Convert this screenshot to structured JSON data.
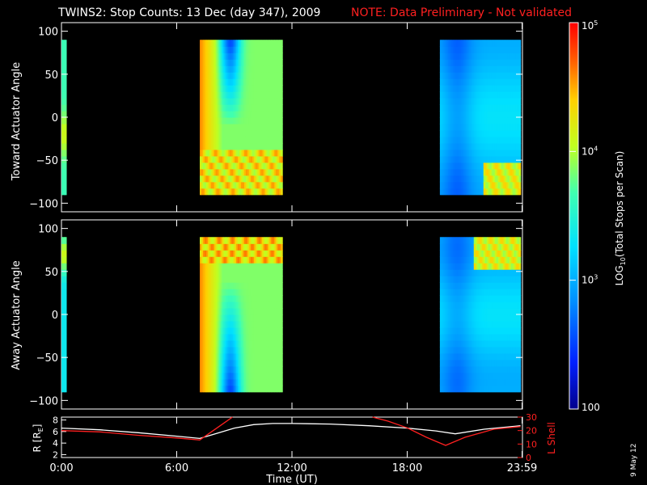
{
  "title": "TWINS2: Stop Counts: 13 Dec (day 347), 2009",
  "note": "NOTE: Data Preliminary - Not validated",
  "stamp": "9 May 12",
  "chart_data": [
    {
      "type": "heatmap",
      "panel": "toward",
      "ylabel": "Toward Actuator Angle",
      "ylim": [
        -110,
        110
      ],
      "yticks": [
        "100",
        "50",
        "0",
        "-50",
        "-100"
      ],
      "x_range_hours": [
        0,
        24
      ],
      "angle_range": [
        -90,
        90
      ],
      "coverage_hours": [
        [
          0.0,
          0.25
        ],
        [
          7.2,
          11.5
        ],
        [
          19.7,
          23.9
        ]
      ],
      "profile_description": "bands of counts vs actuator angle; low counts (blue) near +50..+90 around 8:00, mid counts elsewhere"
    },
    {
      "type": "heatmap",
      "panel": "away",
      "ylabel": "Away Actuator Angle",
      "ylim": [
        -110,
        110
      ],
      "yticks": [
        "100",
        "50",
        "0",
        "-50",
        "-100"
      ],
      "x_range_hours": [
        0,
        24
      ],
      "angle_range": [
        -90,
        90
      ],
      "coverage_hours": [
        [
          0.0,
          0.25
        ],
        [
          7.2,
          11.5
        ],
        [
          19.7,
          23.9
        ]
      ]
    },
    {
      "type": "line",
      "panel": "orbit",
      "ylabel_left": "R [R",
      "ylabel_left_sub": "E",
      "ylabel_left_end": "]",
      "ylabel_right": "L Shell",
      "yticks_left": [
        "8",
        "6",
        "4",
        "2"
      ],
      "yticks_right": [
        "30",
        "20",
        "10",
        "0"
      ],
      "ylim_left": [
        1.5,
        8.5
      ],
      "ylim_right": [
        0,
        30
      ],
      "series": [
        {
          "axis": "left",
          "color": "#ffffff",
          "x": [
            0,
            2,
            4,
            6,
            7.2,
            8,
            9,
            10,
            11,
            12,
            14,
            16,
            18,
            19.5,
            20.5,
            22,
            23.9
          ],
          "y": [
            6.6,
            6.3,
            5.8,
            5.2,
            4.8,
            5.6,
            6.6,
            7.2,
            7.4,
            7.4,
            7.3,
            7.0,
            6.6,
            6.1,
            5.6,
            6.4,
            7.0
          ]
        },
        {
          "axis": "right",
          "color": "#ff2020",
          "x": [
            0,
            2,
            4,
            6,
            7.2,
            7.8,
            8.5,
            8.9
          ],
          "y": [
            20,
            19,
            16.5,
            14.5,
            13,
            19,
            26,
            30
          ],
          "x2": [
            16.2,
            17,
            18,
            19,
            20,
            21,
            22.5,
            23.9
          ],
          "y2": [
            30,
            27,
            22,
            15,
            9,
            15,
            21,
            23
          ]
        }
      ],
      "colors": {
        "left": "#ffffff",
        "right": "#ff2020"
      }
    }
  ],
  "xaxis": {
    "label": "Time (UT)",
    "ticks": [
      "0:00",
      "6:00",
      "12:00",
      "18:00",
      "23:59"
    ],
    "tick_hours": [
      0,
      6,
      12,
      18,
      23.98
    ]
  },
  "colorbar": {
    "label": "LOG",
    "label_sub": "10",
    "label_rest": "(Total Stops per Scan)",
    "ticks": [
      "10",
      "10",
      "10",
      "100"
    ],
    "ticks_exp": [
      "5",
      "4",
      "3",
      ""
    ],
    "range": [
      100,
      100000
    ]
  },
  "colors": {
    "note": "#ff2020",
    "title": "#ffffff",
    "background": "#000000"
  }
}
